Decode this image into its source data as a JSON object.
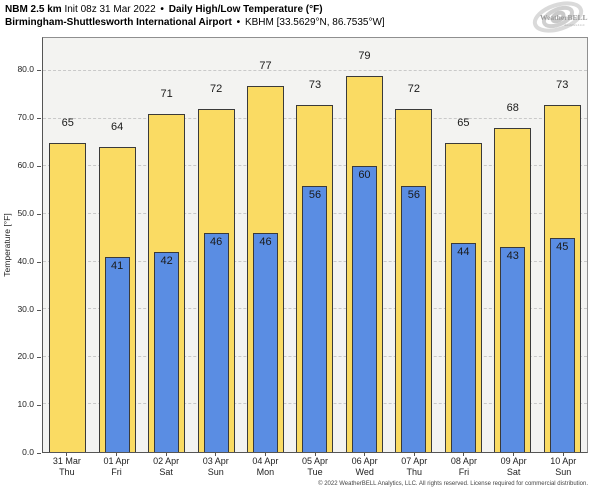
{
  "header": {
    "model": "NBM 2.5 km",
    "init": "Init 08z 31 Mar 2022",
    "sep": "•",
    "product": "Daily High/Low Temperature (°F)",
    "station_name": "Birmingham-Shuttlesworth International Airport",
    "station_code": "KBHM [33.5629°N, 86.7535°W]"
  },
  "logo": {
    "name": "WeatherBELL",
    "sub": "Analytics LLC",
    "color": "#b3b3b3"
  },
  "footer": {
    "copyright": "© 2022 WeatherBELL Analytics, LLC. All rights reserved. License required for commercial distribution."
  },
  "chart_data": {
    "type": "bar",
    "title": "Daily High/Low Temperature (°F)",
    "xlabel": "",
    "ylabel": "Temperature [°F]",
    "ylim": [
      0,
      87
    ],
    "yticks": [
      0,
      10,
      20,
      30,
      40,
      50,
      60,
      70,
      80
    ],
    "grid": "horizontal-dashed",
    "legend": "none",
    "categories": [
      {
        "date": "31 Mar",
        "day": "Thu"
      },
      {
        "date": "01 Apr",
        "day": "Fri"
      },
      {
        "date": "02 Apr",
        "day": "Sat"
      },
      {
        "date": "03 Apr",
        "day": "Sun"
      },
      {
        "date": "04 Apr",
        "day": "Mon"
      },
      {
        "date": "05 Apr",
        "day": "Tue"
      },
      {
        "date": "06 Apr",
        "day": "Wed"
      },
      {
        "date": "07 Apr",
        "day": "Thu"
      },
      {
        "date": "08 Apr",
        "day": "Fri"
      },
      {
        "date": "09 Apr",
        "day": "Sat"
      },
      {
        "date": "10 Apr",
        "day": "Sun"
      }
    ],
    "series": [
      {
        "name": "High",
        "color": "#fadb63",
        "values": [
          65,
          64,
          71,
          72,
          77,
          73,
          79,
          72,
          65,
          68,
          73
        ]
      },
      {
        "name": "Low",
        "color": "#5a8de3",
        "values": [
          null,
          41,
          42,
          46,
          46,
          56,
          60,
          56,
          44,
          43,
          45
        ]
      }
    ]
  }
}
